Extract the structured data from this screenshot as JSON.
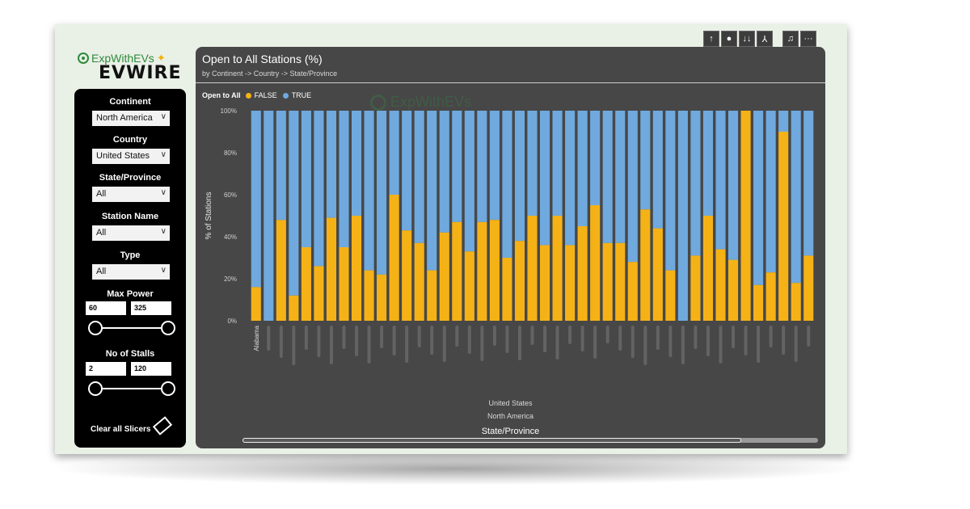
{
  "toolbar": {
    "icons": [
      "arrow-up-icon",
      "drill-down-icon",
      "expand-all-icon",
      "hierarchy-icon",
      "bell-icon",
      "more-options-icon"
    ],
    "glyphs": [
      "↑",
      "●",
      "↓↓",
      "⅄",
      "♫",
      "···"
    ]
  },
  "logo": {
    "brand": "ExpWithEVs",
    "name": "EVWIRE"
  },
  "slicers": {
    "continent": {
      "label": "Continent",
      "value": "North America"
    },
    "country": {
      "label": "Country",
      "value": "United States"
    },
    "state": {
      "label": "State/Province",
      "value": "All"
    },
    "station": {
      "label": "Station Name",
      "value": "All"
    },
    "type": {
      "label": "Type",
      "value": "All"
    },
    "max_power": {
      "label": "Max Power",
      "min": "60",
      "max": "325"
    },
    "stalls": {
      "label": "No of Stalls",
      "min": "2",
      "max": "120"
    },
    "clear": "Clear all Slicers"
  },
  "chart_data": {
    "type": "bar",
    "stacked": true,
    "title": "Open to All Stations (%)",
    "subtitle": "by Continent -> Country -> State/Province",
    "legend_title": "Open to All",
    "legend_placement": "top-left",
    "series": [
      {
        "name": "FALSE",
        "color": "#f5b217",
        "values": [
          16,
          0,
          48,
          12,
          35,
          26,
          49,
          35,
          50,
          24,
          22,
          60,
          43,
          37,
          24,
          42,
          47,
          33,
          47,
          48,
          30,
          38,
          50,
          36,
          50,
          36,
          45,
          55,
          37,
          37,
          28,
          53,
          44,
          24,
          0,
          31,
          50,
          34,
          29,
          100,
          17,
          23,
          90,
          18,
          31
        ]
      },
      {
        "name": "TRUE",
        "color": "#6fa9de",
        "values": [
          84,
          100,
          52,
          88,
          65,
          74,
          51,
          65,
          50,
          76,
          78,
          40,
          57,
          63,
          76,
          58,
          53,
          67,
          53,
          52,
          70,
          62,
          50,
          64,
          50,
          64,
          55,
          45,
          63,
          63,
          72,
          47,
          56,
          76,
          100,
          69,
          50,
          66,
          71,
          0,
          83,
          77,
          10,
          82,
          69
        ]
      }
    ],
    "categories_visible": [
      "Alabama"
    ],
    "category_levels": [
      "United States",
      "North America"
    ],
    "xlabel": "State/Province",
    "ylabel": "% of Stations",
    "ylim": [
      0,
      100
    ],
    "yticks": [
      "0%",
      "20%",
      "40%",
      "60%",
      "80%",
      "100%"
    ],
    "watermark": "ExpWithEVs"
  }
}
